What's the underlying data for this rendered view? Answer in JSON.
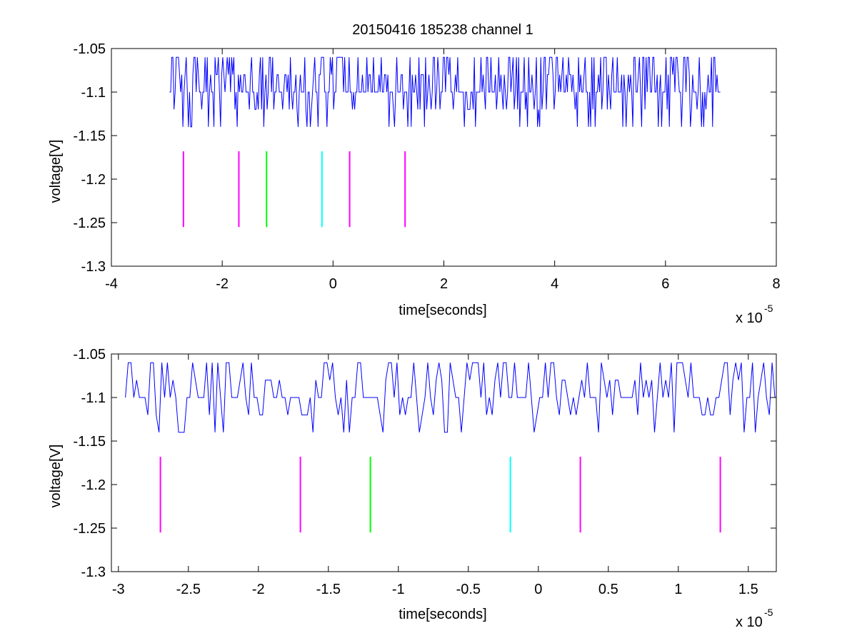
{
  "figure": {
    "title": "20150416 185238 channel 1"
  },
  "chart_data": [
    {
      "type": "line",
      "title": "20150416 185238 channel 1",
      "xlabel": "time[seconds]",
      "ylabel": "voltage[V]",
      "x_multiplier_label": "x 10",
      "x_multiplier_exponent": "-5",
      "xlim": [
        -4e-05,
        8e-05
      ],
      "ylim": [
        -1.3,
        -1.05
      ],
      "xticks": [
        -4,
        -2,
        0,
        2,
        4,
        6,
        8
      ],
      "xtick_labels": [
        "-4",
        "-2",
        "0",
        "2",
        "4",
        "6",
        "8"
      ],
      "yticks": [
        -1.05,
        -1.1,
        -1.15,
        -1.2,
        -1.25,
        -1.3
      ],
      "ytick_labels": [
        "-1.05",
        "-1.1",
        "-1.15",
        "-1.2",
        "-1.25",
        "-1.3"
      ],
      "grid": false,
      "signal": {
        "color": "#0000ff",
        "x_start": -2.95e-05,
        "x_end": 7e-05,
        "sample_step": 2e-07,
        "levels": [
          -1.06,
          -1.08,
          -1.1,
          -1.12,
          -1.14
        ],
        "baseline": -1.1
      },
      "markers": [
        {
          "x": -2.7e-05,
          "y_top": -1.168,
          "y_bottom": -1.255,
          "color": "#ff00ff"
        },
        {
          "x": -1.7e-05,
          "y_top": -1.168,
          "y_bottom": -1.255,
          "color": "#ff00ff"
        },
        {
          "x": -1.2e-05,
          "y_top": -1.168,
          "y_bottom": -1.255,
          "color": "#00ff00"
        },
        {
          "x": -2e-06,
          "y_top": -1.168,
          "y_bottom": -1.255,
          "color": "#00ffff"
        },
        {
          "x": 3e-06,
          "y_top": -1.168,
          "y_bottom": -1.255,
          "color": "#ff00ff"
        },
        {
          "x": 1.3e-05,
          "y_top": -1.168,
          "y_bottom": -1.255,
          "color": "#ff00ff"
        }
      ]
    },
    {
      "type": "line",
      "title": "",
      "xlabel": "time[seconds]",
      "ylabel": "voltage[V]",
      "x_multiplier_label": "x 10",
      "x_multiplier_exponent": "-5",
      "xlim": [
        -3.05e-05,
        1.7e-05
      ],
      "ylim": [
        -1.3,
        -1.05
      ],
      "xticks": [
        -3,
        -2.5,
        -2,
        -1.5,
        -1,
        -0.5,
        0,
        0.5,
        1,
        1.5
      ],
      "xtick_labels": [
        "-3",
        "-2.5",
        "-2",
        "-1.5",
        "-1",
        "-0.5",
        "0",
        "0.5",
        "1",
        "1.5"
      ],
      "yticks": [
        -1.05,
        -1.1,
        -1.15,
        -1.2,
        -1.25,
        -1.3
      ],
      "ytick_labels": [
        "-1.05",
        "-1.1",
        "-1.15",
        "-1.2",
        "-1.25",
        "-1.3"
      ],
      "grid": false,
      "signal": {
        "color": "#0000ff",
        "x_start": -2.95e-05,
        "x_end": 1.7e-05,
        "sample_step": 2e-07,
        "levels": [
          -1.06,
          -1.08,
          -1.1,
          -1.12,
          -1.14
        ],
        "baseline": -1.1
      },
      "markers": [
        {
          "x": -2.7e-05,
          "y_top": -1.168,
          "y_bottom": -1.255,
          "color": "#ff00ff"
        },
        {
          "x": -1.7e-05,
          "y_top": -1.168,
          "y_bottom": -1.255,
          "color": "#ff00ff"
        },
        {
          "x": -1.2e-05,
          "y_top": -1.168,
          "y_bottom": -1.255,
          "color": "#00ff00"
        },
        {
          "x": -2e-06,
          "y_top": -1.168,
          "y_bottom": -1.255,
          "color": "#00ffff"
        },
        {
          "x": 3e-06,
          "y_top": -1.168,
          "y_bottom": -1.255,
          "color": "#ff00ff"
        },
        {
          "x": 1.3e-05,
          "y_top": -1.168,
          "y_bottom": -1.255,
          "color": "#ff00ff"
        }
      ]
    }
  ]
}
